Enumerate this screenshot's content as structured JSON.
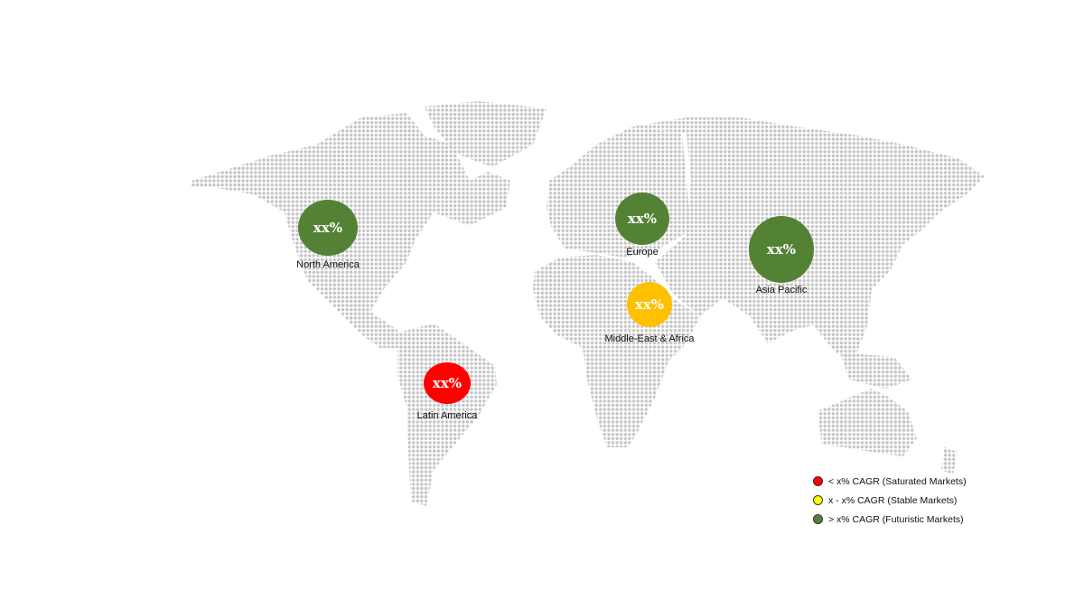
{
  "regions": [
    {
      "name": "North America",
      "value": "xx%",
      "color": "#548235"
    },
    {
      "name": "Europe",
      "value": "xx%",
      "color": "#548235"
    },
    {
      "name": "Asia Pacific",
      "value": "xx%",
      "color": "#548235"
    },
    {
      "name": "Middle-East & Africa",
      "value": "xx%",
      "color": "#ffc000"
    },
    {
      "name": "Latin America",
      "value": "xx%",
      "color": "#ff0000"
    }
  ],
  "legend": [
    {
      "label": "< x% CAGR (Saturated Markets)",
      "color": "#ff0000"
    },
    {
      "label": "x - x% CAGR (Stable Markets)",
      "color": "#ffff00"
    },
    {
      "label": "> x% CAGR (Futuristic Markets)",
      "color": "#548235"
    }
  ],
  "map_dot_color": "#c4c4c4"
}
